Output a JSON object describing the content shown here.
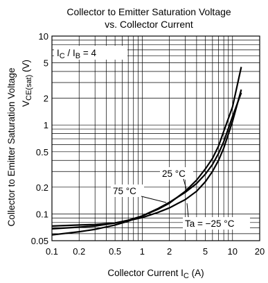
{
  "chart_data": {
    "type": "line",
    "title_line1": "Collector to Emitter Saturation Voltage",
    "title_line2": "vs. Collector Current",
    "xlabel": "Collector Current  I",
    "xlabel_sub": "C",
    "xlabel_unit": " (A)",
    "ylabel": "Collector to Emitter Saturation Voltage",
    "ylabel_symbol": "V",
    "ylabel_sub": "CE(sat)",
    "ylabel_unit": " (V)",
    "x_scale": "log",
    "y_scale": "log",
    "xlim": [
      0.1,
      20
    ],
    "ylim": [
      0.05,
      10
    ],
    "x_ticks": [
      {
        "value": 0.1,
        "label": "0.1"
      },
      {
        "value": 0.2,
        "label": "0.2"
      },
      {
        "value": 0.5,
        "label": "0.5"
      },
      {
        "value": 1,
        "label": "1"
      },
      {
        "value": 2,
        "label": "2"
      },
      {
        "value": 5,
        "label": "5"
      },
      {
        "value": 10,
        "label": "10"
      },
      {
        "value": 20,
        "label": "20"
      }
    ],
    "y_ticks": [
      {
        "value": 0.05,
        "label": "0.05"
      },
      {
        "value": 0.1,
        "label": "0.1"
      },
      {
        "value": 0.2,
        "label": "0.2"
      },
      {
        "value": 0.5,
        "label": "0.5"
      },
      {
        "value": 1,
        "label": "1"
      },
      {
        "value": 2,
        "label": "2"
      },
      {
        "value": 5,
        "label": "5"
      },
      {
        "value": 10,
        "label": "10"
      }
    ],
    "condition": {
      "text_pre": "I",
      "sub1": "C",
      "text_mid": " / I",
      "sub2": "B",
      "text_post": " = 4"
    },
    "grid": true,
    "series": [
      {
        "name": "75 °C",
        "x": [
          0.1,
          0.2,
          0.3,
          0.5,
          0.7,
          1,
          1.5,
          2,
          3,
          4,
          5,
          6,
          7,
          8,
          10,
          12.5
        ],
        "y": [
          0.058,
          0.063,
          0.067,
          0.075,
          0.083,
          0.095,
          0.115,
          0.135,
          0.175,
          0.22,
          0.28,
          0.36,
          0.48,
          0.65,
          1.25,
          2.3
        ]
      },
      {
        "name": "25 °C",
        "x": [
          0.1,
          0.2,
          0.3,
          0.5,
          0.7,
          1,
          1.5,
          2,
          3,
          4,
          5,
          6,
          7,
          8,
          10,
          12.5
        ],
        "y": [
          0.068,
          0.071,
          0.073,
          0.079,
          0.085,
          0.095,
          0.113,
          0.132,
          0.18,
          0.24,
          0.32,
          0.42,
          0.58,
          0.85,
          1.6,
          4.5
        ]
      },
      {
        "name": "Ta = −25 °C",
        "x": [
          0.1,
          0.2,
          0.3,
          0.5,
          0.7,
          1,
          1.5,
          2,
          3,
          4,
          5,
          6,
          7,
          8,
          10,
          12.5
        ],
        "y": [
          0.073,
          0.075,
          0.076,
          0.079,
          0.084,
          0.091,
          0.104,
          0.117,
          0.145,
          0.18,
          0.23,
          0.3,
          0.4,
          0.55,
          1.1,
          2.5
        ]
      }
    ]
  }
}
